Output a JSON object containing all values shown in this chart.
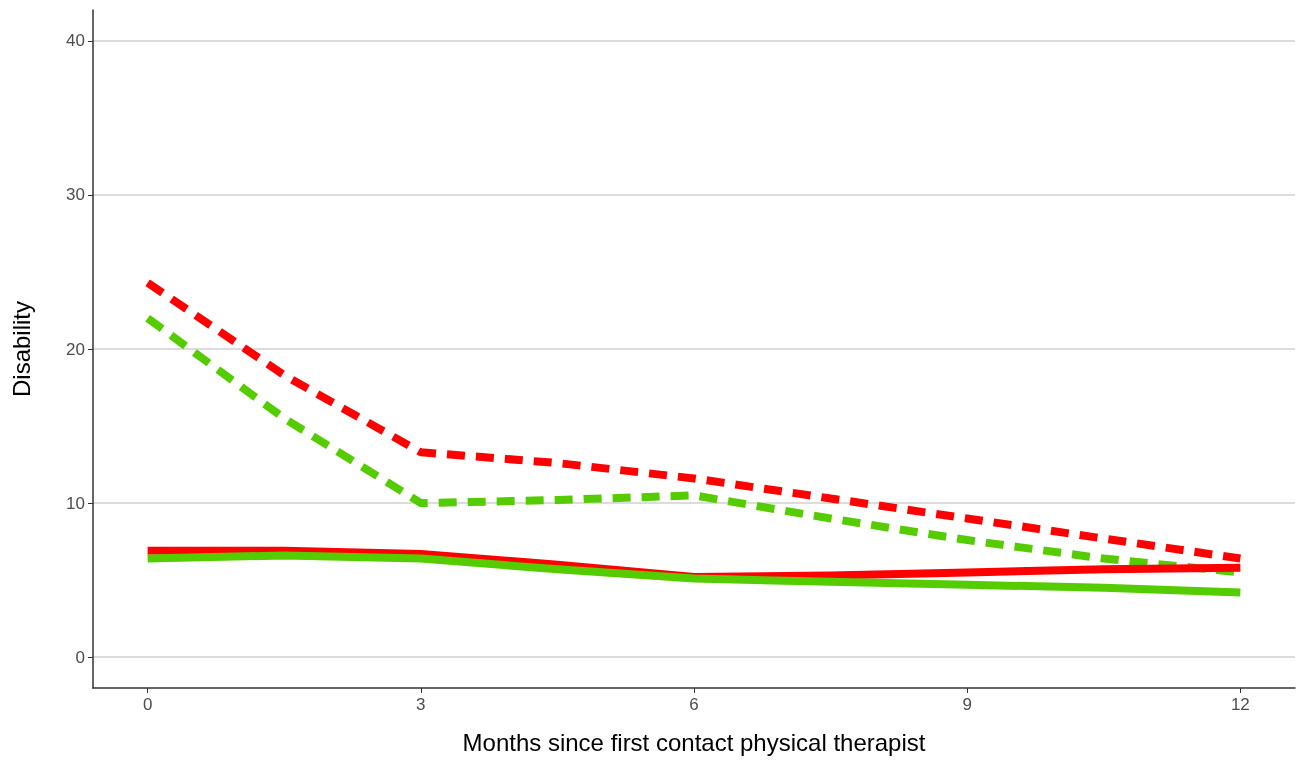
{
  "chart_data": {
    "type": "line",
    "xlabel": "Months since first contact physical therapist",
    "ylabel": "Disability",
    "xlim": [
      -0.6,
      12.6
    ],
    "ylim": [
      -2,
      42
    ],
    "xticks": [
      0,
      3,
      6,
      9,
      12
    ],
    "yticks": [
      0,
      10,
      20,
      30,
      40
    ],
    "grid": "y",
    "marker": "none",
    "series": [
      {
        "color": "#ff0000",
        "line_style": "dashed",
        "x": [
          0,
          1.5,
          3,
          4.5,
          6,
          7.5,
          9,
          10.5,
          12
        ],
        "values": [
          24.3,
          18.3,
          13.3,
          12.6,
          11.6,
          10.3,
          9.0,
          7.7,
          6.4
        ]
      },
      {
        "color": "#55cc00",
        "line_style": "dashed",
        "x": [
          0,
          1.5,
          3,
          4.5,
          6,
          7.5,
          9,
          10.5,
          12
        ],
        "values": [
          22.0,
          15.5,
          10.0,
          10.2,
          10.5,
          9.0,
          7.6,
          6.4,
          5.5
        ]
      },
      {
        "color": "#ff0000",
        "line_style": "solid",
        "x": [
          0,
          1.5,
          3,
          4.5,
          6,
          7.5,
          9,
          10.5,
          12
        ],
        "values": [
          6.9,
          6.9,
          6.7,
          6.0,
          5.2,
          5.3,
          5.5,
          5.7,
          5.8
        ]
      },
      {
        "color": "#55cc00",
        "line_style": "solid",
        "x": [
          0,
          1.5,
          3,
          4.5,
          6,
          7.5,
          9,
          10.5,
          12
        ],
        "values": [
          6.4,
          6.6,
          6.4,
          5.7,
          5.1,
          4.9,
          4.7,
          4.5,
          4.2
        ]
      }
    ]
  }
}
